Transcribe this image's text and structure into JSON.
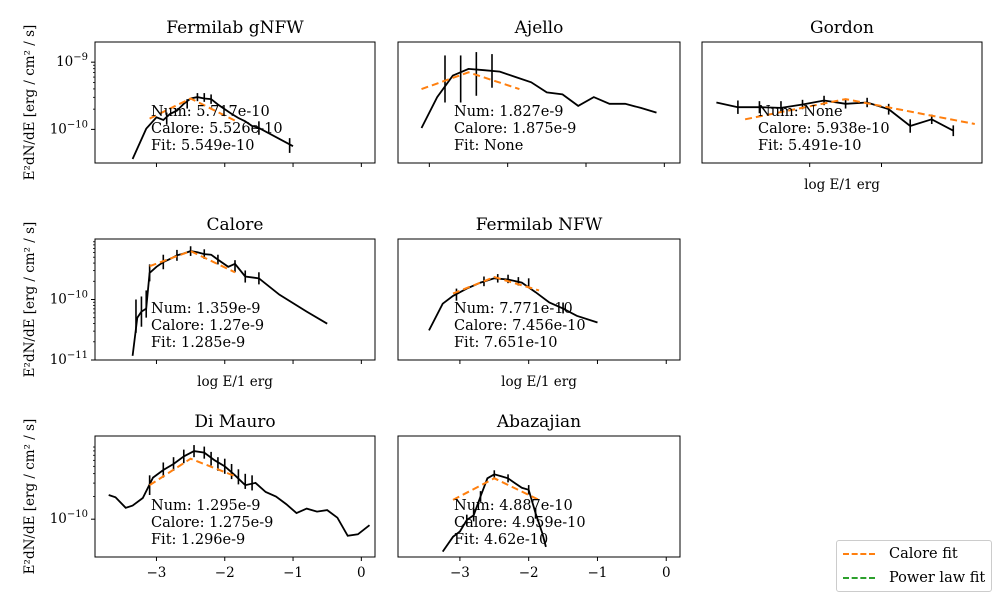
{
  "colors": {
    "calore_fit": "#ff7f0e",
    "power_law_fit": "#2ca02c",
    "data_line": "#000000"
  },
  "y_axis_label": "E²dN/dE [erg / cm² / s]",
  "x_axis_label": "log E/1 erg",
  "legend": {
    "placement": "lower-right",
    "entries": [
      {
        "label": "Calore fit",
        "color": "#ff7f0e",
        "style": "dashed"
      },
      {
        "label": "Power law fit",
        "color": "#2ca02c",
        "style": "dashed"
      }
    ]
  },
  "chart_data": [
    {
      "type": "line",
      "title": "Fermilab gNFW",
      "xlim": [
        -3.9,
        0.2
      ],
      "ylim_log10": [
        -10.5,
        -8.7
      ],
      "y_ticks": [
        {
          "v": -10,
          "label": "10^-10"
        },
        {
          "v": -9,
          "label": "10^-9"
        }
      ],
      "x_ticks": [
        {
          "v": -3,
          "label": ""
        },
        {
          "v": -2,
          "label": ""
        },
        {
          "v": -1,
          "label": ""
        },
        {
          "v": 0,
          "label": ""
        }
      ],
      "show_y_label": true,
      "show_x_label": false,
      "line": {
        "x": [
          -3.35,
          -3.15,
          -3.0,
          -2.9,
          -2.8,
          -2.7,
          -2.6,
          -2.5,
          -2.4,
          -2.3,
          -2.2,
          -2.1,
          -2.0,
          -1.9,
          -1.8,
          -1.7,
          -1.6,
          -1.5,
          -1.0
        ],
        "log10y": [
          -10.44,
          -9.99,
          -9.82,
          -9.86,
          -9.77,
          -9.72,
          -9.62,
          -9.54,
          -9.52,
          -9.54,
          -9.55,
          -9.63,
          -9.7,
          -9.77,
          -9.83,
          -9.88,
          -9.95,
          -9.98,
          -10.25
        ]
      },
      "errorbars": [
        {
          "x": -2.85,
          "log10y": -9.84,
          "lo": -9.93,
          "hi": -9.75
        },
        {
          "x": -2.55,
          "log10y": -9.62,
          "lo": -9.69,
          "hi": -9.55
        },
        {
          "x": -2.4,
          "log10y": -9.52,
          "lo": -9.58,
          "hi": -9.46
        },
        {
          "x": -2.3,
          "log10y": -9.53,
          "lo": -9.59,
          "hi": -9.46
        },
        {
          "x": -2.2,
          "log10y": -9.55,
          "lo": -9.62,
          "hi": -9.48
        },
        {
          "x": -1.5,
          "log10y": -9.98,
          "lo": -10.08,
          "hi": -9.88
        },
        {
          "x": -1.05,
          "log10y": -10.24,
          "lo": -10.35,
          "hi": -10.13
        }
      ],
      "fit": {
        "x": [
          -3.1,
          -2.5,
          -1.85
        ],
        "log10y": [
          -9.84,
          -9.54,
          -9.87
        ]
      },
      "annotations": [
        "Num: 5.717e-10",
        "Calore: 5.526e-10",
        "Fit: 5.549e-10"
      ]
    },
    {
      "type": "line",
      "title": "Ajello",
      "xlim": [
        -3.4,
        0.2
      ],
      "ylim_log10": [
        -10.5,
        -8.7
      ],
      "y_ticks": [],
      "x_ticks": [
        {
          "v": -3,
          "label": ""
        },
        {
          "v": -2,
          "label": ""
        },
        {
          "v": -1,
          "label": ""
        },
        {
          "v": 0,
          "label": ""
        }
      ],
      "show_y_label": false,
      "show_x_label": false,
      "line": {
        "x": [
          -3.1,
          -2.9,
          -2.7,
          -2.5,
          -2.3,
          -2.1,
          -1.9,
          -1.7,
          -1.5,
          -1.3,
          -1.1,
          -0.9,
          -0.7,
          -0.5,
          -0.3,
          -0.1
        ],
        "log10y": [
          -9.98,
          -9.52,
          -9.2,
          -9.1,
          -9.12,
          -9.14,
          -9.22,
          -9.3,
          -9.45,
          -9.48,
          -9.65,
          -9.52,
          -9.62,
          -9.62,
          -9.68,
          -9.75
        ]
      },
      "errorbars": [
        {
          "x": -2.8,
          "log10y": -9.3,
          "lo": -9.6,
          "hi": -8.9
        },
        {
          "x": -2.6,
          "log10y": -9.22,
          "lo": -9.6,
          "hi": -8.9
        },
        {
          "x": -2.4,
          "log10y": -9.15,
          "lo": -9.5,
          "hi": -8.85
        },
        {
          "x": -2.2,
          "log10y": -9.12,
          "lo": -9.38,
          "hi": -8.88
        }
      ],
      "fit": {
        "x": [
          -3.1,
          -2.5,
          -1.85
        ],
        "log10y": [
          -9.4,
          -9.15,
          -9.4
        ]
      },
      "annotations": [
        "Num: 1.827e-9",
        "Calore: 1.875e-9",
        "Fit: None"
      ]
    },
    {
      "type": "line",
      "title": "Gordon",
      "xlim": [
        -4.5,
        -0.6
      ],
      "ylim_log10": [
        -10.5,
        -8.7
      ],
      "y_ticks": [],
      "x_ticks": [
        {
          "v": -3,
          "label": ""
        },
        {
          "v": -2,
          "label": ""
        }
      ],
      "show_y_label": false,
      "show_x_label": true,
      "line": {
        "x": [
          -4.3,
          -4.0,
          -3.7,
          -3.4,
          -3.1,
          -2.8,
          -2.5,
          -2.2,
          -1.9,
          -1.6,
          -1.3,
          -1.0
        ],
        "log10y": [
          -9.6,
          -9.67,
          -9.67,
          -9.68,
          -9.63,
          -9.57,
          -9.62,
          -9.6,
          -9.7,
          -9.95,
          -9.85,
          -10.02
        ]
      },
      "errorbars": [
        {
          "x": -4.0,
          "log10y": -9.67,
          "lo": -9.77,
          "hi": -9.57
        },
        {
          "x": -3.7,
          "log10y": -9.67,
          "lo": -9.76,
          "hi": -9.58
        },
        {
          "x": -3.4,
          "log10y": -9.66,
          "lo": -9.74,
          "hi": -9.58
        },
        {
          "x": -3.1,
          "log10y": -9.63,
          "lo": -9.7,
          "hi": -9.56
        },
        {
          "x": -2.8,
          "log10y": -9.57,
          "lo": -9.64,
          "hi": -9.5
        },
        {
          "x": -2.5,
          "log10y": -9.62,
          "lo": -9.69,
          "hi": -9.55
        },
        {
          "x": -2.2,
          "log10y": -9.6,
          "lo": -9.67,
          "hi": -9.53
        },
        {
          "x": -1.9,
          "log10y": -9.7,
          "lo": -9.78,
          "hi": -9.62
        },
        {
          "x": -1.6,
          "log10y": -9.95,
          "lo": -10.05,
          "hi": -9.85
        },
        {
          "x": -1.3,
          "log10y": -9.85,
          "lo": -9.92,
          "hi": -9.78
        },
        {
          "x": -1.0,
          "log10y": -10.02,
          "lo": -10.1,
          "hi": -9.94
        }
      ],
      "fit": {
        "x": [
          -3.9,
          -2.5,
          -0.7
        ],
        "log10y": [
          -9.85,
          -9.55,
          -9.92
        ]
      },
      "annotations": [
        "Num: None",
        "Calore: 5.938e-10",
        "Fit: 5.491e-10"
      ]
    },
    {
      "type": "line",
      "title": "Calore",
      "xlim": [
        -3.9,
        0.2
      ],
      "ylim_log10": [
        -11.0,
        -9.0
      ],
      "y_ticks": [
        {
          "v": -11,
          "label": "10^-11"
        },
        {
          "v": -10,
          "label": "10^-10"
        }
      ],
      "x_ticks": [
        {
          "v": -3,
          "label": ""
        },
        {
          "v": -2,
          "label": ""
        },
        {
          "v": -1,
          "label": ""
        },
        {
          "v": 0,
          "label": ""
        }
      ],
      "show_y_label": true,
      "show_x_label": true,
      "line": {
        "x": [
          -3.35,
          -3.28,
          -3.22,
          -3.15,
          -3.1,
          -3.0,
          -2.9,
          -2.8,
          -2.7,
          -2.6,
          -2.5,
          -2.4,
          -2.3,
          -2.2,
          -2.1,
          -1.95,
          -1.85,
          -1.7,
          -1.5,
          -1.2,
          -0.8,
          -0.5
        ],
        "log10y": [
          -10.93,
          -10.3,
          -10.2,
          -10.15,
          -9.56,
          -9.46,
          -9.38,
          -9.33,
          -9.27,
          -9.24,
          -9.2,
          -9.22,
          -9.25,
          -9.26,
          -9.34,
          -9.46,
          -9.41,
          -9.62,
          -9.65,
          -9.92,
          -10.2,
          -10.4
        ]
      },
      "errorbars": [
        {
          "x": -3.3,
          "log10y": -10.3,
          "lo": -10.55,
          "hi": -10.0
        },
        {
          "x": -3.22,
          "log10y": -10.2,
          "lo": -10.45,
          "hi": -9.95
        },
        {
          "x": -3.15,
          "log10y": -10.05,
          "lo": -10.3,
          "hi": -9.85
        },
        {
          "x": -3.1,
          "log10y": -9.56,
          "lo": -9.7,
          "hi": -9.42
        },
        {
          "x": -2.9,
          "log10y": -9.38,
          "lo": -9.5,
          "hi": -9.26
        },
        {
          "x": -2.7,
          "log10y": -9.27,
          "lo": -9.36,
          "hi": -9.18
        },
        {
          "x": -2.5,
          "log10y": -9.2,
          "lo": -9.28,
          "hi": -9.12
        },
        {
          "x": -2.3,
          "log10y": -9.25,
          "lo": -9.33,
          "hi": -9.17
        },
        {
          "x": -2.1,
          "log10y": -9.34,
          "lo": -9.42,
          "hi": -9.26
        },
        {
          "x": -1.85,
          "log10y": -9.45,
          "lo": -9.55,
          "hi": -9.35
        },
        {
          "x": -1.7,
          "log10y": -9.62,
          "lo": -9.72,
          "hi": -9.52
        },
        {
          "x": -1.5,
          "log10y": -9.65,
          "lo": -9.75,
          "hi": -9.55
        }
      ],
      "fit": {
        "x": [
          -3.1,
          -2.5,
          -1.85
        ],
        "log10y": [
          -9.45,
          -9.2,
          -9.55
        ]
      },
      "annotations": [
        "Num: 1.359e-9",
        "Calore: 1.27e-9",
        "Fit: 1.285e-9"
      ]
    },
    {
      "type": "line",
      "title": "Fermilab NFW",
      "xlim": [
        -3.9,
        0.2
      ],
      "ylim_log10": [
        -10.9,
        -8.9
      ],
      "y_ticks": [],
      "x_ticks": [
        {
          "v": -3,
          "label": ""
        },
        {
          "v": -2,
          "label": ""
        },
        {
          "v": -1,
          "label": ""
        },
        {
          "v": 0,
          "label": ""
        }
      ],
      "show_y_label": false,
      "show_x_label": true,
      "line": {
        "x": [
          -3.45,
          -3.25,
          -3.1,
          -2.9,
          -2.7,
          -2.5,
          -2.3,
          -2.1,
          -1.9,
          -1.7,
          -1.5,
          -1.3,
          -1.0
        ],
        "log10y": [
          -10.41,
          -9.97,
          -9.84,
          -9.72,
          -9.62,
          -9.55,
          -9.57,
          -9.62,
          -9.78,
          -9.95,
          -10.05,
          -10.17,
          -10.28
        ]
      },
      "errorbars": [
        {
          "x": -3.05,
          "log10y": -9.82,
          "lo": -9.92,
          "hi": -9.72
        },
        {
          "x": -2.65,
          "log10y": -9.6,
          "lo": -9.68,
          "hi": -9.52
        },
        {
          "x": -2.45,
          "log10y": -9.55,
          "lo": -9.62,
          "hi": -9.48
        },
        {
          "x": -2.3,
          "log10y": -9.56,
          "lo": -9.63,
          "hi": -9.49
        },
        {
          "x": -2.15,
          "log10y": -9.6,
          "lo": -9.67,
          "hi": -9.53
        },
        {
          "x": -2.0,
          "log10y": -9.62,
          "lo": -9.69,
          "hi": -9.55
        },
        {
          "x": -1.5,
          "log10y": -10.04,
          "lo": -10.13,
          "hi": -9.95
        }
      ],
      "fit": {
        "x": [
          -3.1,
          -2.5,
          -1.85
        ],
        "log10y": [
          -9.8,
          -9.53,
          -9.75
        ]
      },
      "annotations": [
        "Num: 7.771e-10",
        "Calore: 7.456e-10",
        "Fit: 7.651e-10"
      ]
    },
    {
      "type": "line",
      "title": "Di Mauro",
      "xlim": [
        -3.9,
        0.2
      ],
      "ylim_log10": [
        -10.5,
        -8.9
      ],
      "y_ticks": [
        {
          "v": -10,
          "label": "10^-10"
        }
      ],
      "x_ticks": [
        {
          "v": -3,
          "label": "−3"
        },
        {
          "v": -2,
          "label": "−2"
        },
        {
          "v": -1,
          "label": "−1"
        },
        {
          "v": 0,
          "label": "0"
        }
      ],
      "show_y_label": true,
      "show_x_label": false,
      "line": {
        "x": [
          -3.7,
          -3.6,
          -3.45,
          -3.35,
          -3.2,
          -3.05,
          -2.9,
          -2.75,
          -2.6,
          -2.45,
          -2.3,
          -2.15,
          -2.0,
          -1.85,
          -1.7,
          -1.55,
          -1.4,
          -1.25,
          -1.1,
          -0.95,
          -0.8,
          -0.65,
          -0.5,
          -0.35,
          -0.2,
          -0.05,
          0.12
        ],
        "log10y": [
          -9.68,
          -9.71,
          -9.85,
          -9.82,
          -9.72,
          -9.45,
          -9.35,
          -9.27,
          -9.17,
          -9.1,
          -9.12,
          -9.22,
          -9.3,
          -9.42,
          -9.55,
          -9.52,
          -9.64,
          -9.7,
          -9.8,
          -9.92,
          -9.86,
          -9.9,
          -9.88,
          -9.98,
          -10.22,
          -10.2,
          -10.08
        ]
      },
      "errorbars": [
        {
          "x": -3.1,
          "log10y": -9.55,
          "lo": -9.68,
          "hi": -9.42
        },
        {
          "x": -2.9,
          "log10y": -9.35,
          "lo": -9.45,
          "hi": -9.25
        },
        {
          "x": -2.75,
          "log10y": -9.27,
          "lo": -9.36,
          "hi": -9.18
        },
        {
          "x": -2.6,
          "log10y": -9.17,
          "lo": -9.26,
          "hi": -9.08
        },
        {
          "x": -2.45,
          "log10y": -9.1,
          "lo": -9.18,
          "hi": -9.02
        },
        {
          "x": -2.3,
          "log10y": -9.12,
          "lo": -9.2,
          "hi": -9.04
        },
        {
          "x": -2.2,
          "log10y": -9.2,
          "lo": -9.29,
          "hi": -9.11
        },
        {
          "x": -2.1,
          "log10y": -9.27,
          "lo": -9.36,
          "hi": -9.18
        },
        {
          "x": -2.0,
          "log10y": -9.3,
          "lo": -9.4,
          "hi": -9.2
        },
        {
          "x": -1.9,
          "log10y": -9.37,
          "lo": -9.47,
          "hi": -9.27
        },
        {
          "x": -1.8,
          "log10y": -9.44,
          "lo": -9.54,
          "hi": -9.34
        },
        {
          "x": -1.7,
          "log10y": -9.5,
          "lo": -9.6,
          "hi": -9.4
        },
        {
          "x": -1.6,
          "log10y": -9.52,
          "lo": -9.62,
          "hi": -9.42
        }
      ],
      "fit": {
        "x": [
          -3.1,
          -2.5,
          -1.85
        ],
        "log10y": [
          -9.55,
          -9.2,
          -9.43
        ]
      },
      "annotations": [
        "Num: 1.295e-9",
        "Calore: 1.275e-9",
        "Fit: 1.296e-9"
      ]
    },
    {
      "type": "line",
      "title": "Abazajian",
      "xlim": [
        -3.9,
        0.2
      ],
      "ylim_log10": [
        -10.6,
        -8.8
      ],
      "y_ticks": [],
      "x_ticks": [
        {
          "v": -3,
          "label": "−3"
        },
        {
          "v": -2,
          "label": "−2"
        },
        {
          "v": -1,
          "label": "−1"
        },
        {
          "v": 0,
          "label": "0"
        }
      ],
      "show_y_label": false,
      "show_x_label": false,
      "line": {
        "x": [
          -3.25,
          -3.1,
          -3.0,
          -2.9,
          -2.8,
          -2.7,
          -2.6,
          -2.5,
          -2.4,
          -2.3,
          -2.2,
          -2.1,
          -2.0,
          -1.9,
          -1.8,
          -1.75
        ],
        "log10y": [
          -10.52,
          -10.3,
          -10.22,
          -10.05,
          -9.98,
          -9.7,
          -9.43,
          -9.37,
          -9.4,
          -9.43,
          -9.5,
          -9.57,
          -9.6,
          -9.95,
          -10.25,
          -10.45
        ]
      },
      "errorbars": [
        {
          "x": -2.9,
          "log10y": -10.05,
          "lo": -10.13,
          "hi": -9.97
        },
        {
          "x": -2.8,
          "log10y": -9.98,
          "lo": -10.07,
          "hi": -9.89
        },
        {
          "x": -2.7,
          "log10y": -9.7,
          "lo": -9.78,
          "hi": -9.62
        },
        {
          "x": -2.5,
          "log10y": -9.37,
          "lo": -9.43,
          "hi": -9.31
        },
        {
          "x": -2.3,
          "log10y": -9.43,
          "lo": -9.49,
          "hi": -9.37
        },
        {
          "x": -2.0,
          "log10y": -9.6,
          "lo": -9.67,
          "hi": -9.53
        },
        {
          "x": -1.9,
          "log10y": -9.95,
          "lo": -10.03,
          "hi": -9.87
        }
      ],
      "fit": {
        "x": [
          -3.1,
          -2.5,
          -1.85
        ],
        "log10y": [
          -9.75,
          -9.43,
          -9.75
        ]
      },
      "annotations": [
        "Num: 4.887e-10",
        "Calore: 4.959e-10",
        "Fit: 4.62e-10"
      ]
    }
  ]
}
